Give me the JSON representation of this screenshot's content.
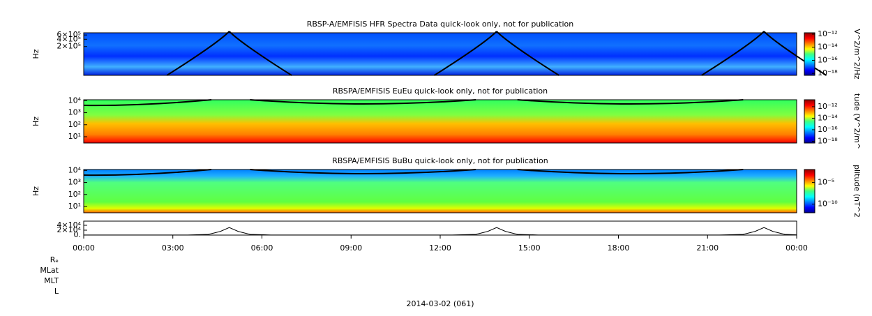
{
  "chart_data": [
    {
      "type": "spectrogram",
      "title": "RBSP-A/EMFISIS  HFR Spectra Data quick-look only, not for publication",
      "ylabel": "Hz",
      "ylog": true,
      "xlim": [
        0,
        24
      ],
      "ylim": [
        13000,
        740000
      ],
      "yticks": [
        {
          "value": 200000,
          "label": "2×10⁵"
        },
        {
          "value": 400000,
          "label": "4×10⁵"
        },
        {
          "value": 600000,
          "label": "6×10⁵"
        }
      ],
      "colorbar_label": "V^2/m^2/Hz",
      "clim": [
        5e-19,
        1.6e-12
      ],
      "cticks": [
        {
          "value": 1e-12,
          "label": "10⁻¹²"
        },
        {
          "value": 1e-14,
          "label": "10⁻¹⁴"
        },
        {
          "value": 1e-16,
          "label": "10⁻¹⁶"
        },
        {
          "value": 1e-18,
          "label": "10⁻¹⁸"
        }
      ]
    },
    {
      "type": "spectrogram",
      "title": "RBSPA/EMFISIS  EuEu quick-look only, not for publication",
      "ylabel": "Hz",
      "ylog": true,
      "xlim": [
        0,
        24
      ],
      "ylim": [
        3,
        12000
      ],
      "yticks": [
        {
          "value": 10,
          "label": "10¹"
        },
        {
          "value": 100,
          "label": "10²"
        },
        {
          "value": 1000,
          "label": "10³"
        },
        {
          "value": 10000,
          "label": "10⁴"
        }
      ],
      "colorbar_label": "tude (V^2/m^",
      "clim": [
        5e-19,
        1.6e-11
      ],
      "cticks": [
        {
          "value": 1e-12,
          "label": "10⁻¹²"
        },
        {
          "value": 1e-14,
          "label": "10⁻¹⁴"
        },
        {
          "value": 1e-16,
          "label": "10⁻¹⁶"
        },
        {
          "value": 1e-18,
          "label": "10⁻¹⁸"
        }
      ]
    },
    {
      "type": "spectrogram",
      "title": "RBSPA/EMFISIS  BuBu quick-look only, not for publication",
      "ylabel": "Hz",
      "ylog": true,
      "xlim": [
        0,
        24
      ],
      "ylim": [
        3,
        12000
      ],
      "yticks": [
        {
          "value": 10,
          "label": "10¹"
        },
        {
          "value": 100,
          "label": "10²"
        },
        {
          "value": 1000,
          "label": "10³"
        },
        {
          "value": 10000,
          "label": "10⁴"
        }
      ],
      "colorbar_label": "plitude (nT^2",
      "clim": [
        1e-12,
        0.01
      ],
      "cticks": [
        {
          "value": 1e-05,
          "label": "10⁻⁵"
        },
        {
          "value": 1e-10,
          "label": "10⁻¹⁰"
        }
      ]
    },
    {
      "type": "line",
      "xlim": [
        0,
        24
      ],
      "ylim": [
        0,
        57000
      ],
      "yticks": [
        {
          "value": 0,
          "label": "0."
        },
        {
          "value": 20000,
          "label": "2×10⁴"
        },
        {
          "value": 40000,
          "label": "4×10⁴"
        }
      ],
      "xticks": [
        {
          "value": 0,
          "label": "00:00"
        },
        {
          "value": 3,
          "label": "03:00"
        },
        {
          "value": 6,
          "label": "06:00"
        },
        {
          "value": 9,
          "label": "09:00"
        },
        {
          "value": 12,
          "label": "12:00"
        },
        {
          "value": 15,
          "label": "15:00"
        },
        {
          "value": 18,
          "label": "18:00"
        },
        {
          "value": 21,
          "label": "21:00"
        },
        {
          "value": 24,
          "label": "00:00"
        }
      ],
      "x": [
        0,
        3.5,
        4.2,
        4.6,
        4.9,
        5.2,
        5.6,
        6.3,
        12.4,
        13.2,
        13.6,
        13.9,
        14.2,
        14.6,
        15.3,
        21.4,
        22.2,
        22.6,
        22.9,
        23.2,
        23.6,
        24
      ],
      "series": [
        {
          "color": "#000000",
          "values": [
            300,
            500,
            3000,
            15000,
            31000,
            15000,
            3000,
            500,
            500,
            3000,
            15000,
            31000,
            15000,
            3000,
            500,
            500,
            3000,
            15000,
            31000,
            15000,
            3000,
            1000
          ]
        }
      ],
      "row_labels": [
        "Rₑ",
        "MLat",
        "MLT",
        "L"
      ],
      "xlabel": "2014-03-02 (061)"
    }
  ]
}
